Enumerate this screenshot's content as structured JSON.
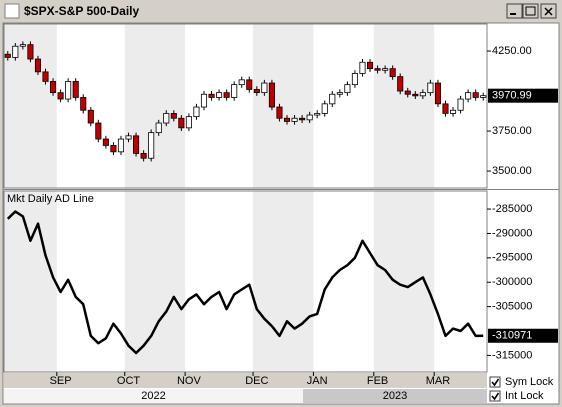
{
  "window_title": "$SPX-S&P 500-Daily",
  "chart_data": [
    {
      "type": "candlestick",
      "open": [
        4230,
        4210,
        4280,
        4290,
        4200,
        4120,
        4060,
        3990,
        3950,
        4060,
        3960,
        3880,
        3800,
        3700,
        3660,
        3620,
        3700,
        3720,
        3610,
        3580,
        3740,
        3800,
        3860,
        3830,
        3770,
        3840,
        3900,
        3980,
        3960,
        3990,
        3960,
        4040,
        4070,
        4010,
        3990,
        4050,
        3900,
        3830,
        3810,
        3830,
        3820,
        3850,
        3860,
        3920,
        3980,
        3990,
        4040,
        4110,
        4180,
        4140,
        4130,
        4140,
        4090,
        4000,
        3980,
        3970,
        3990,
        4050,
        3920,
        3860,
        3880,
        3950,
        3990,
        3960
      ],
      "high": [
        4250,
        4300,
        4310,
        4310,
        4220,
        4140,
        4080,
        4010,
        4080,
        4080,
        3980,
        3900,
        3820,
        3720,
        3680,
        3720,
        3740,
        3740,
        3630,
        3760,
        3820,
        3880,
        3880,
        3850,
        3860,
        3920,
        4000,
        4000,
        4010,
        4010,
        4060,
        4090,
        4090,
        4030,
        4070,
        4070,
        3920,
        3850,
        3850,
        3850,
        3870,
        3880,
        3940,
        4000,
        4010,
        4060,
        4130,
        4200,
        4200,
        4160,
        4160,
        4160,
        4110,
        4020,
        4000,
        4010,
        4070,
        4070,
        3940,
        3900,
        3970,
        4010,
        4010,
        3990
      ],
      "low": [
        4190,
        4190,
        4260,
        4180,
        4100,
        4040,
        3970,
        3930,
        3930,
        3940,
        3860,
        3780,
        3680,
        3640,
        3600,
        3600,
        3680,
        3590,
        3560,
        3560,
        3720,
        3780,
        3810,
        3750,
        3750,
        3820,
        3880,
        3940,
        3940,
        3940,
        3940,
        4020,
        3990,
        3970,
        3970,
        3880,
        3810,
        3790,
        3790,
        3800,
        3800,
        3830,
        3840,
        3900,
        3960,
        3970,
        4020,
        4090,
        4120,
        4110,
        4110,
        4070,
        3980,
        3960,
        3950,
        3950,
        3970,
        3900,
        3840,
        3840,
        3860,
        3930,
        3940,
        3940
      ],
      "close": [
        4210,
        4280,
        4290,
        4200,
        4120,
        4060,
        3990,
        3950,
        4060,
        3960,
        3880,
        3800,
        3700,
        3660,
        3620,
        3700,
        3720,
        3610,
        3580,
        3740,
        3800,
        3860,
        3830,
        3770,
        3840,
        3900,
        3980,
        3960,
        3990,
        3960,
        4040,
        4070,
        4010,
        3990,
        4050,
        3900,
        3830,
        3810,
        3830,
        3820,
        3850,
        3860,
        3920,
        3980,
        3990,
        4040,
        4110,
        4180,
        4140,
        4130,
        4140,
        4090,
        4000,
        3980,
        3970,
        3990,
        4050,
        3920,
        3860,
        3880,
        3950,
        3990,
        3960,
        3970.99
      ],
      "up_color": "#ffffff",
      "down_color": "#c00000",
      "ylim": [
        3394,
        4419
      ],
      "yticks": [
        {
          "value": 4250,
          "label": "4250.00"
        },
        {
          "value": 3750,
          "label": "3750.00"
        },
        {
          "value": 3500,
          "label": "3500.00"
        }
      ],
      "last_value": 3970.99
    },
    {
      "type": "line",
      "title": "Mkt Daily AD Line",
      "categories": [
        null,
        null,
        null,
        null,
        null,
        null,
        null,
        "SEP",
        null,
        null,
        null,
        null,
        null,
        null,
        null,
        null,
        "OCT",
        null,
        null,
        null,
        null,
        null,
        null,
        null,
        "NOV",
        null,
        null,
        null,
        null,
        null,
        null,
        null,
        null,
        "DEC",
        null,
        null,
        null,
        null,
        null,
        null,
        null,
        "JAN",
        null,
        null,
        null,
        null,
        null,
        null,
        null,
        "FEB",
        null,
        null,
        null,
        null,
        null,
        null,
        null,
        "MAR",
        null,
        null,
        null,
        null,
        null,
        null
      ],
      "values": [
        -287000,
        -285500,
        -286500,
        -291500,
        -288000,
        -294500,
        -299000,
        -302000,
        -299500,
        -303000,
        -304500,
        -311000,
        -312500,
        -311500,
        -308500,
        -310500,
        -313000,
        -314500,
        -313000,
        -311000,
        -308000,
        -306000,
        -303000,
        -305500,
        -303500,
        -302500,
        -304500,
        -303000,
        -302000,
        -305500,
        -302500,
        -301500,
        -300500,
        -305500,
        -307500,
        -309000,
        -311000,
        -308000,
        -309500,
        -308500,
        -307000,
        -306500,
        -301500,
        -299000,
        -297500,
        -296500,
        -295000,
        -291500,
        -294000,
        -296500,
        -297500,
        -299500,
        -300500,
        -301000,
        -300000,
        -299000,
        -302500,
        -306500,
        -311000,
        -309500,
        -310000,
        -308500,
        -311000,
        -310971
      ],
      "color": "#000000",
      "ylim": [
        -318400,
        -281300
      ],
      "yticks": [
        -285000,
        -290000,
        -295000,
        -300000,
        -305000,
        -315000
      ],
      "last_value": -310971
    }
  ],
  "years": [
    "2022",
    "2023"
  ],
  "controls": [
    {
      "label": "Sym Lock",
      "checked": true
    },
    {
      "label": "Int Lock",
      "checked": true
    }
  ]
}
